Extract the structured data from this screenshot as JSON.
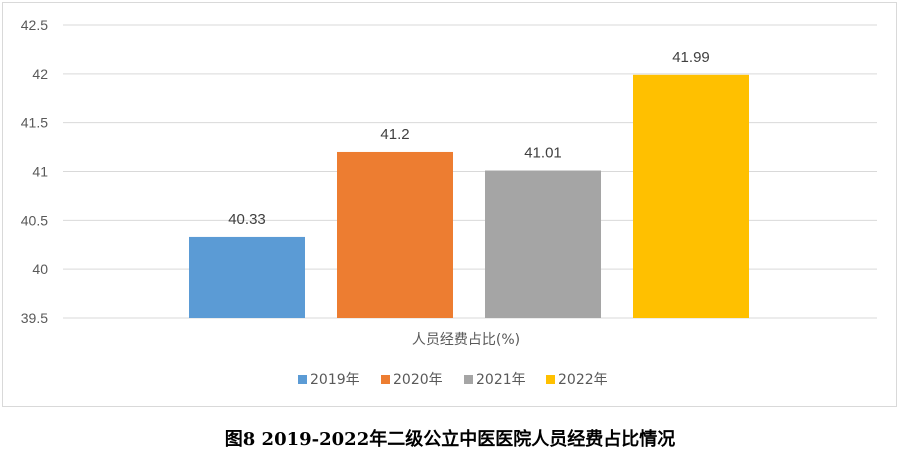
{
  "chart_data": {
    "type": "bar",
    "category": "人员经费占比(%)",
    "series": [
      {
        "name": "2019年",
        "value": 40.33,
        "label": "40.33",
        "color": "#5B9BD5"
      },
      {
        "name": "2020年",
        "value": 41.2,
        "label": "41.2",
        "color": "#ED7D31"
      },
      {
        "name": "2021年",
        "value": 41.01,
        "label": "41.01",
        "color": "#A5A5A5"
      },
      {
        "name": "2022年",
        "value": 41.99,
        "label": "41.99",
        "color": "#FFC000"
      }
    ],
    "ylim": [
      39.5,
      42.5
    ],
    "yticks": [
      "39.5",
      "40",
      "40.5",
      "41",
      "41.5",
      "42",
      "42.5"
    ],
    "grid": true,
    "legend": "bottom"
  },
  "caption": "图8 2019-2022年二级公立中医医院人员经费占比情况"
}
